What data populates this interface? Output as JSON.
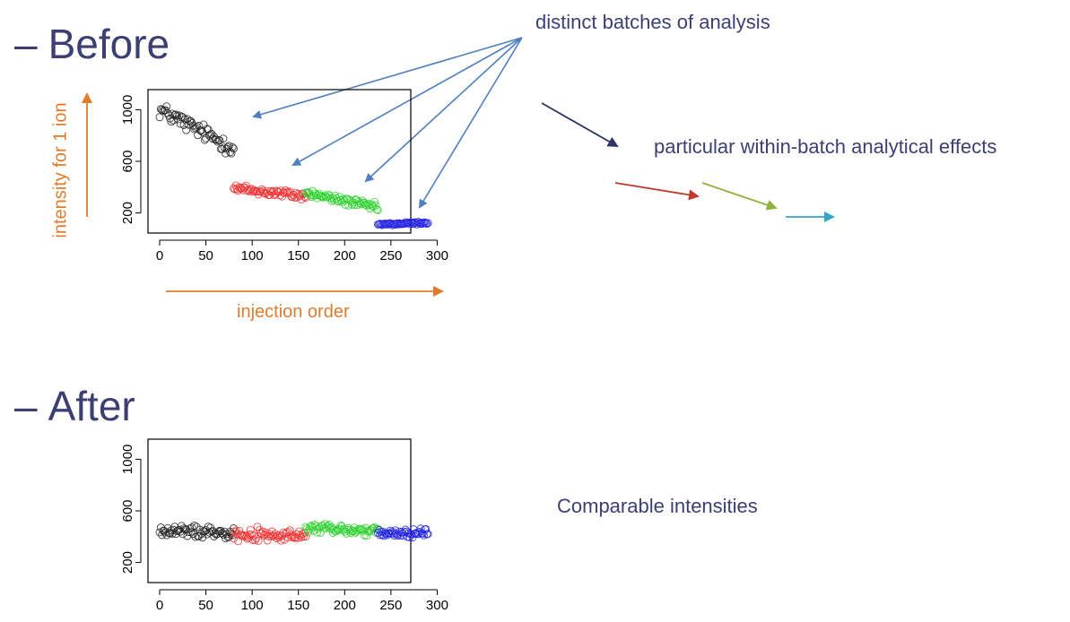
{
  "headings": {
    "before_dash": "–",
    "before": "Before",
    "after_dash": "–",
    "after": "After"
  },
  "annotations": {
    "batches": "distinct batches of analysis",
    "within_batch": "particular within-batch analytical effects",
    "comparable": "Comparable intensities"
  },
  "axis_captions": {
    "x": "injection order",
    "y": "intensity for 1 ion"
  },
  "colors": {
    "heading": "#3b3f73",
    "caption": "#e07b2e",
    "batch_arrow": "#4f7fbf",
    "effect_arrows": [
      "#2e3566",
      "#c0392b",
      "#8db33e",
      "#32a6c4"
    ],
    "series": [
      "#222222",
      "#f03030",
      "#2ad12a",
      "#2020e0"
    ]
  },
  "chart_data": [
    {
      "type": "scatter",
      "title": "Before",
      "xlabel": "injection order",
      "ylabel": "intensity for 1 ion",
      "xlim": [
        0,
        300
      ],
      "ylim": [
        100,
        1100
      ],
      "x_ticks": [
        0,
        50,
        100,
        150,
        200,
        250,
        300
      ],
      "y_ticks": [
        200,
        600,
        1000
      ],
      "grid": false,
      "legend": "none",
      "series": [
        {
          "batch": 1,
          "color": "#222222",
          "x_range": [
            0,
            80
          ],
          "y_start": 1000,
          "y_end": 700,
          "spread": 70,
          "n": 65
        },
        {
          "batch": 2,
          "color": "#f03030",
          "x_range": [
            80,
            158
          ],
          "y_start": 390,
          "y_end": 330,
          "spread": 40,
          "n": 65
        },
        {
          "batch": 3,
          "color": "#2ad12a",
          "x_range": [
            158,
            236
          ],
          "y_start": 355,
          "y_end": 240,
          "spread": 35,
          "n": 65
        },
        {
          "batch": 4,
          "color": "#2020e0",
          "x_range": [
            236,
            290
          ],
          "y_start": 110,
          "y_end": 125,
          "spread": 12,
          "n": 50
        }
      ]
    },
    {
      "type": "scatter",
      "title": "After",
      "xlim": [
        0,
        300
      ],
      "ylim": [
        100,
        1100
      ],
      "x_ticks": [
        0,
        50,
        100,
        150,
        200,
        250,
        300
      ],
      "y_ticks": [
        200,
        600,
        1000
      ],
      "grid": false,
      "legend": "none",
      "series": [
        {
          "batch": 1,
          "color": "#222222",
          "x_range": [
            0,
            80
          ],
          "y_start": 440,
          "y_end": 440,
          "spread": 50,
          "n": 65
        },
        {
          "batch": 2,
          "color": "#f03030",
          "x_range": [
            80,
            158
          ],
          "y_start": 420,
          "y_end": 400,
          "spread": 55,
          "n": 65
        },
        {
          "batch": 3,
          "color": "#2ad12a",
          "x_range": [
            158,
            236
          ],
          "y_start": 470,
          "y_end": 440,
          "spread": 45,
          "n": 65
        },
        {
          "batch": 4,
          "color": "#2020e0",
          "x_range": [
            236,
            290
          ],
          "y_start": 420,
          "y_end": 430,
          "spread": 40,
          "n": 50
        }
      ]
    }
  ]
}
